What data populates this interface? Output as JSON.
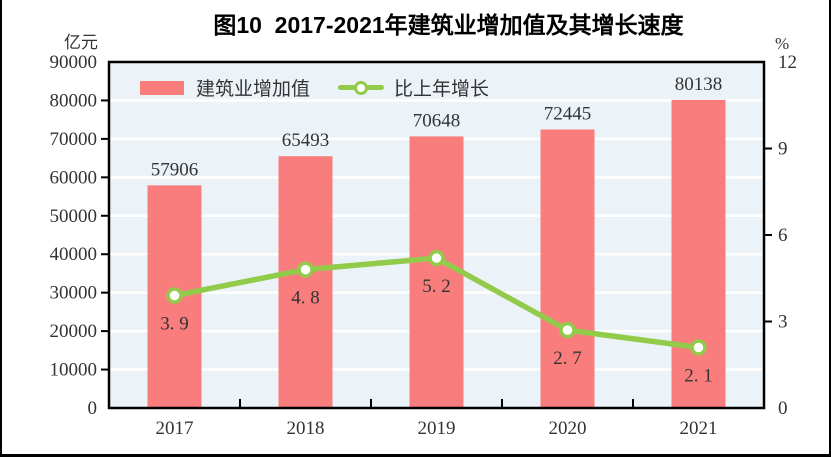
{
  "title": "图10  2017-2021年建筑业增加值及其增长速度",
  "axes": {
    "left": {
      "unit": "亿元",
      "ticks": [
        0,
        10000,
        20000,
        30000,
        40000,
        50000,
        60000,
        70000,
        80000,
        90000
      ],
      "max": 90000
    },
    "right": {
      "unit": "%",
      "ticks": [
        0,
        3,
        6,
        9,
        12
      ],
      "max": 12
    }
  },
  "legend": [
    {
      "label": "建筑业增加值",
      "type": "bar"
    },
    {
      "label": "比上年增长",
      "type": "line"
    }
  ],
  "colors": {
    "bar": "#FA7D7D",
    "line": "#92CB4A",
    "marker_fill": "#FFFFFF",
    "plot_bg": "#ECF3F8",
    "grid": "#FFFFFF",
    "frame": "#000000",
    "text": "#333333"
  },
  "chart_data": {
    "type": "bar+line combo",
    "title": "图10  2017-2021年建筑业增加值及其增长速度",
    "categories": [
      "2017",
      "2018",
      "2019",
      "2020",
      "2021"
    ],
    "series": [
      {
        "name": "建筑业增加值",
        "type": "bar",
        "axis": "left",
        "unit": "亿元",
        "values": [
          57906,
          65493,
          70648,
          72445,
          80138
        ],
        "labels": [
          "57906",
          "65493",
          "70648",
          "72445",
          "80138"
        ]
      },
      {
        "name": "比上年增长",
        "type": "line",
        "axis": "right",
        "unit": "%",
        "values": [
          3.9,
          4.8,
          5.2,
          2.7,
          2.1
        ],
        "labels": [
          "3. 9",
          "4. 8",
          "5. 2",
          "2. 7",
          "2. 1"
        ]
      }
    ],
    "left_ylim": [
      0,
      90000
    ],
    "right_ylim": [
      0,
      12
    ],
    "grid": "horizontal white gridlines on light blue plot background",
    "legend_position": "top-left inside plot area"
  }
}
